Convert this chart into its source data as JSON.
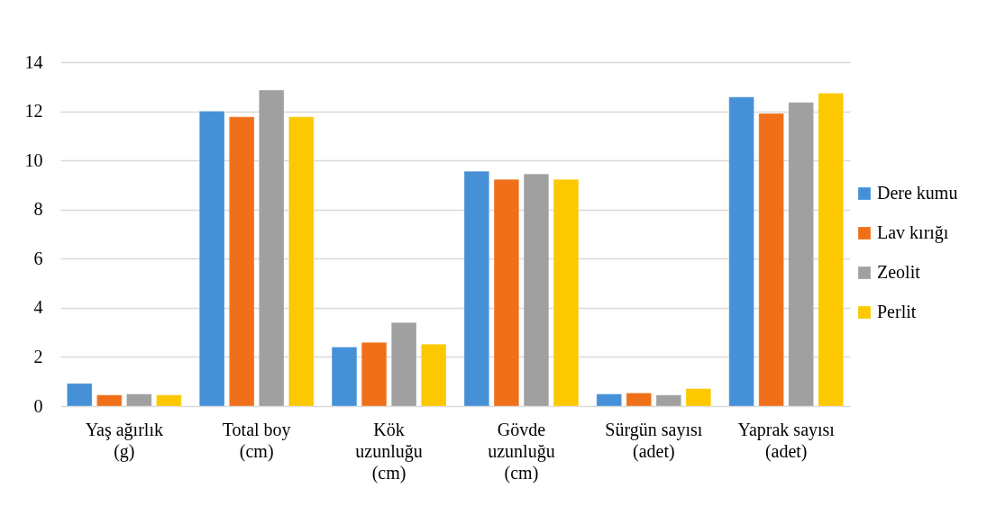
{
  "chart_data": {
    "type": "bar",
    "categories": [
      "Yaş ağırlık (g)",
      "Total boy (cm)",
      "Kök uzunluğu (cm)",
      "Gövde uzunluğu (cm)",
      "Sürgün sayısı (adet)",
      "Yaprak sayısı (adet)"
    ],
    "series": [
      {
        "name": "Dere kumu",
        "color": "#4690d8",
        "values": [
          0.92,
          12.0,
          2.4,
          9.56,
          0.49,
          12.58
        ]
      },
      {
        "name": "Lav kırığı",
        "color": "#f0701a",
        "values": [
          0.45,
          11.77,
          2.59,
          9.23,
          0.53,
          11.91
        ]
      },
      {
        "name": "Zeolit",
        "color": "#a0a0a0",
        "values": [
          0.49,
          12.86,
          3.4,
          9.45,
          0.45,
          12.36
        ]
      },
      {
        "name": "Perlit",
        "color": "#fcc800",
        "values": [
          0.45,
          11.77,
          2.52,
          9.23,
          0.71,
          12.74
        ]
      }
    ],
    "ylim": [
      0,
      14
    ],
    "yticks": [
      0,
      2,
      4,
      6,
      8,
      10,
      12,
      14
    ],
    "grid": "y",
    "legend": "right"
  }
}
